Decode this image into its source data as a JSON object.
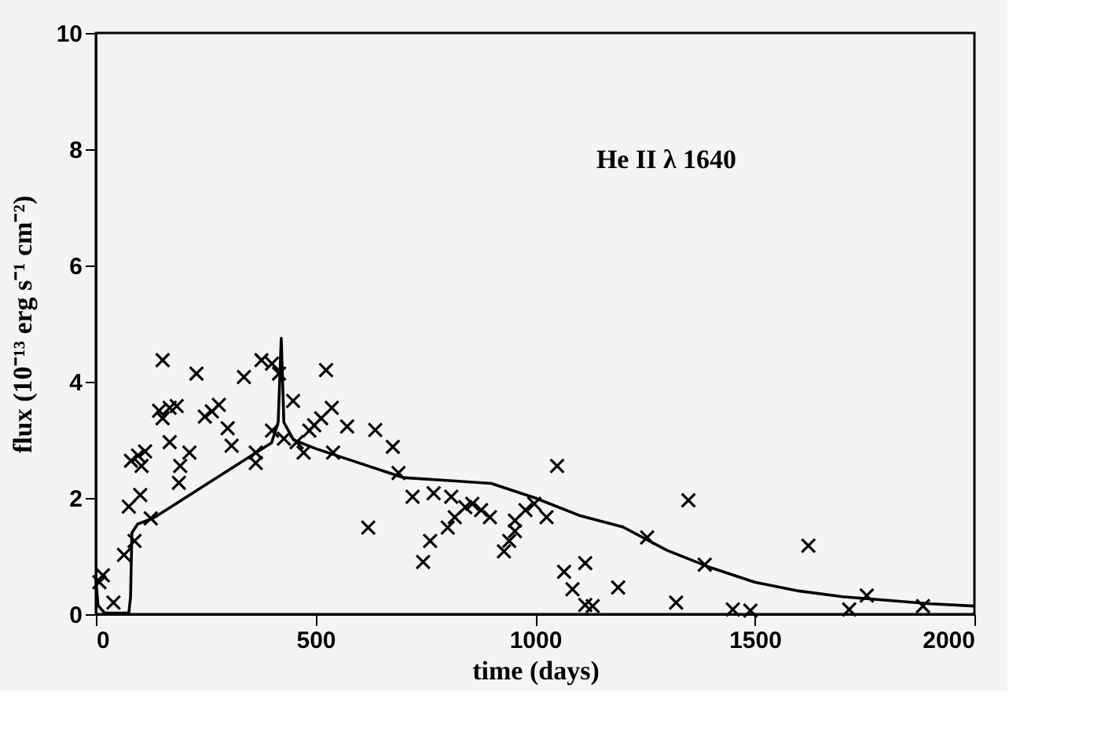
{
  "chart_data": {
    "type": "scatter",
    "xlabel": "time (days)",
    "ylabel": "flux (10⁻¹³ erg s⁻¹ cm⁻²)",
    "annotations": [
      "He II λ 1640"
    ],
    "xlim": [
      0,
      2000
    ],
    "xticks": [
      0,
      500,
      1000,
      1500,
      2000
    ],
    "ylim": [
      0,
      10
    ],
    "yticks": [
      0,
      2,
      4,
      6,
      8,
      10
    ],
    "grid": false,
    "series": [
      {
        "marker": "cross",
        "color": "#000000",
        "x": [
          8,
          16,
          40,
          64,
          75,
          80,
          88,
          96,
          101,
          104,
          112,
          125,
          144,
          152,
          152,
          168,
          168,
          184,
          189,
          192,
          213,
          229,
          248,
          264,
          280,
          300,
          309,
          337,
          364,
          364,
          377,
          401,
          401,
          417,
          428,
          449,
          457,
          473,
          486,
          497,
          513,
          524,
          537,
          540,
          572,
          620,
          636,
          676,
          689,
          721,
          745,
          761,
          769,
          801,
          809,
          817,
          841,
          857,
          877,
          897,
          929,
          941,
          954,
          954,
          978,
          998,
          1026,
          1050,
          1066,
          1085,
          1114,
          1114,
          1131,
          1189,
          1255,
          1321,
          1349,
          1386,
          1450,
          1490,
          1622,
          1715,
          1755,
          1883
        ],
        "values": [
          0.55,
          0.67,
          0.2,
          1.02,
          1.85,
          2.64,
          1.26,
          2.73,
          2.05,
          2.55,
          2.8,
          1.65,
          3.5,
          4.37,
          3.37,
          3.55,
          2.96,
          3.58,
          2.26,
          2.55,
          2.78,
          4.14,
          3.4,
          3.49,
          3.6,
          3.2,
          2.9,
          4.08,
          2.78,
          2.6,
          4.37,
          3.16,
          4.31,
          4.14,
          3.02,
          3.67,
          2.96,
          2.78,
          3.16,
          3.25,
          3.37,
          4.2,
          3.55,
          2.78,
          3.23,
          1.49,
          3.17,
          2.88,
          2.43,
          2.02,
          0.9,
          1.26,
          2.08,
          1.49,
          2.02,
          1.67,
          1.84,
          1.9,
          1.79,
          1.67,
          1.08,
          1.26,
          1.43,
          1.61,
          1.79,
          1.9,
          1.67,
          2.55,
          0.73,
          0.43,
          0.88,
          0.16,
          0.14,
          0.46,
          1.32,
          0.2,
          1.96,
          0.85,
          0.08,
          0.06,
          1.18,
          0.08,
          0.32,
          0.14
        ]
      },
      {
        "type": "line",
        "marker": "none",
        "color": "#000000",
        "line_style": "solid",
        "x": [
          0,
          5,
          20,
          75,
          79,
          82,
          95,
          130,
          400,
          415,
          422,
          428,
          450,
          500,
          600,
          700,
          800,
          900,
          1000,
          1100,
          1200,
          1300,
          1400,
          1500,
          1600,
          1700,
          1800,
          1900,
          2000
        ],
        "values": [
          0.6,
          0.15,
          0.02,
          0.02,
          0.3,
          1.4,
          1.55,
          1.65,
          2.95,
          3.3,
          4.75,
          3.3,
          3.0,
          2.85,
          2.6,
          2.35,
          2.3,
          2.25,
          2.0,
          1.7,
          1.5,
          1.1,
          0.8,
          0.55,
          0.4,
          0.3,
          0.24,
          0.18,
          0.14
        ]
      }
    ]
  }
}
